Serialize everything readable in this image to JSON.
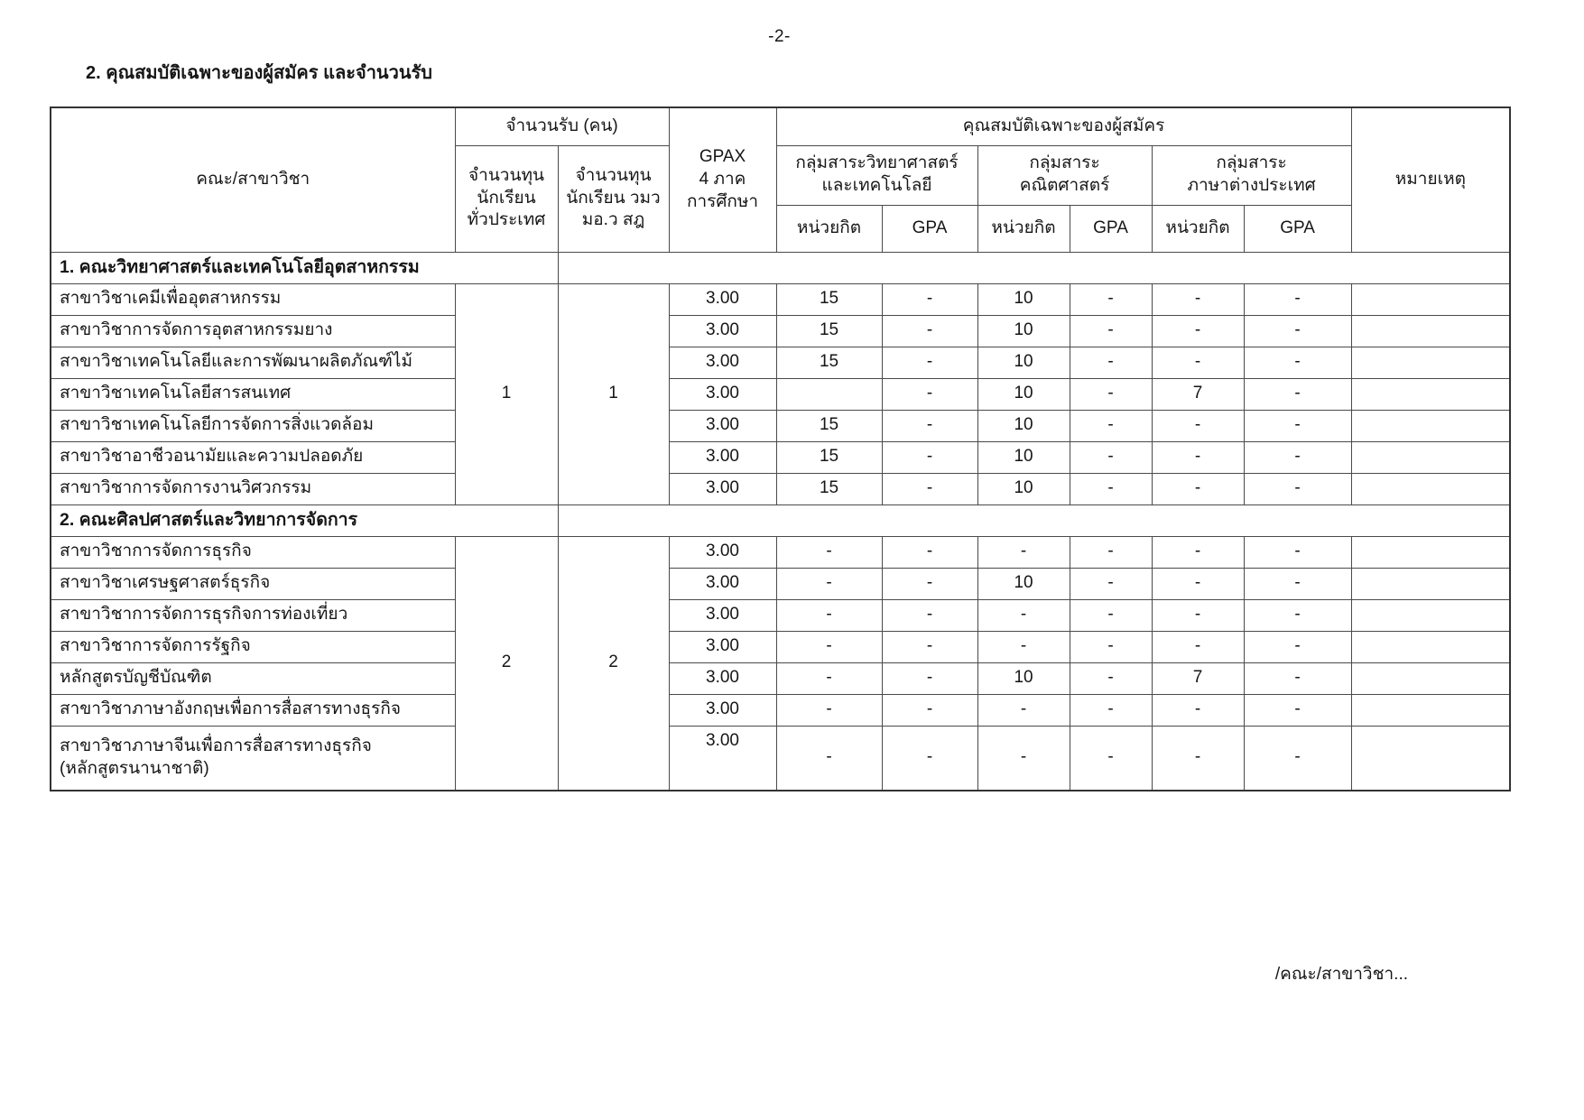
{
  "page": {
    "page_number": "-2-",
    "heading": "2. คุณสมบัติเฉพาะของผู้สมัคร และจำนวนรับ",
    "footer": "/คณะ/สาขาวิชา..."
  },
  "table": {
    "header": {
      "faculty": "คณะ/สาขาวิชา",
      "admission_group": "จำนวนรับ (คน)",
      "admission_cols": [
        "จำนวนทุน\nนักเรียน\nทั่วประเทศ",
        "จำนวนทุน\nนักเรียน วมว\nมอ.ว สฎ"
      ],
      "gpax": "GPAX\n4 ภาค\nการศึกษา",
      "qualifications_group": "คุณสมบัติเฉพาะของผู้สมัคร",
      "subject_groups": [
        "กลุ่มสาระวิทยาศาสตร์\nและเทคโนโลยี",
        "กลุ่มสาระ\nคณิตศาสตร์",
        "กลุ่มสาระ\nภาษาต่างประเทศ"
      ],
      "credit_label": "หน่วยกิต",
      "gpa_label": "GPA",
      "remark": "หมายเหตุ"
    },
    "sections": [
      {
        "title": "1. คณะวิทยาศาสตร์และเทคโนโลยีอุตสาหกรรม",
        "quota_national": "1",
        "quota_scius": "1",
        "rows": [
          {
            "name": "สาขาวิชาเคมีเพื่ออุตสาหกรรม",
            "gpax": "3.00",
            "values": [
              "15",
              "-",
              "10",
              "-",
              "-",
              "-"
            ]
          },
          {
            "name": "สาขาวิชาการจัดการอุตสาหกรรมยาง",
            "gpax": "3.00",
            "values": [
              "15",
              "-",
              "10",
              "-",
              "-",
              "-"
            ]
          },
          {
            "name": "สาขาวิชาเทคโนโลยีและการพัฒนาผลิตภัณฑ์ไม้",
            "gpax": "3.00",
            "values": [
              "15",
              "-",
              "10",
              "-",
              "-",
              "-"
            ]
          },
          {
            "name": "สาขาวิชาเทคโนโลยีสารสนเทศ",
            "gpax": "3.00",
            "values": [
              "",
              "-",
              "10",
              "-",
              "7",
              "-"
            ]
          },
          {
            "name": "สาขาวิชาเทคโนโลยีการจัดการสิ่งแวดล้อม",
            "gpax": "3.00",
            "values": [
              "15",
              "-",
              "10",
              "-",
              "-",
              "-"
            ]
          },
          {
            "name": "สาขาวิชาอาชีวอนามัยและความปลอดภัย",
            "gpax": "3.00",
            "values": [
              "15",
              "-",
              "10",
              "-",
              "-",
              "-"
            ]
          },
          {
            "name": "สาขาวิชาการจัดการงานวิศวกรรม",
            "gpax": "3.00",
            "values": [
              "15",
              "-",
              "10",
              "-",
              "-",
              "-"
            ]
          }
        ]
      },
      {
        "title": "2. คณะศิลปศาสตร์และวิทยาการจัดการ",
        "quota_national": "2",
        "quota_scius": "2",
        "rows": [
          {
            "name": "สาขาวิชาการจัดการธุรกิจ",
            "gpax": "3.00",
            "values": [
              "-",
              "-",
              "-",
              "-",
              "-",
              "-"
            ]
          },
          {
            "name": "สาขาวิชาเศรษฐศาสตร์ธุรกิจ",
            "gpax": "3.00",
            "values": [
              "-",
              "-",
              "10",
              "-",
              "-",
              "-"
            ]
          },
          {
            "name": "สาขาวิชาการจัดการธุรกิจการท่องเที่ยว",
            "gpax": "3.00",
            "values": [
              "-",
              "-",
              "-",
              "-",
              "-",
              "-"
            ]
          },
          {
            "name": "สาขาวิชาการจัดการรัฐกิจ",
            "gpax": "3.00",
            "values": [
              "-",
              "-",
              "-",
              "-",
              "-",
              "-"
            ]
          },
          {
            "name": "หลักสูตรบัญชีบัณฑิต",
            "gpax": "3.00",
            "values": [
              "-",
              "-",
              "10",
              "-",
              "7",
              "-"
            ]
          },
          {
            "name": "สาขาวิชาภาษาอังกฤษเพื่อการสื่อสารทางธุรกิจ",
            "gpax": "3.00",
            "values": [
              "-",
              "-",
              "-",
              "-",
              "-",
              "-"
            ]
          },
          {
            "name": "สาขาวิชาภาษาจีนเพื่อการสื่อสารทางธุรกิจ\n(หลักสูตรนานาชาติ)",
            "gpax": "3.00",
            "values": [
              "-",
              "-",
              "-",
              "-",
              "-",
              "-"
            ]
          }
        ]
      }
    ]
  }
}
